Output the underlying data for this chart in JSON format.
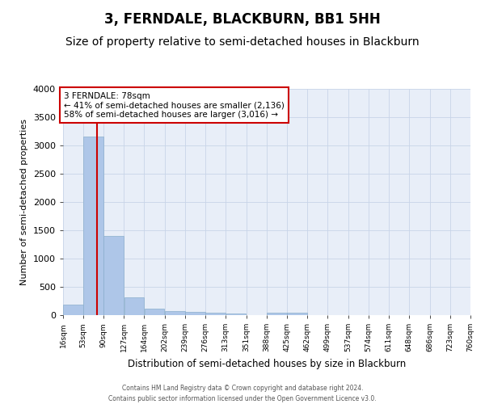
{
  "title": "3, FERNDALE, BLACKBURN, BB1 5HH",
  "subtitle": "Size of property relative to semi-detached houses in Blackburn",
  "xlabel": "Distribution of semi-detached houses by size in Blackburn",
  "ylabel": "Number of semi-detached properties",
  "bin_edges": [
    16,
    53,
    90,
    127,
    164,
    202,
    239,
    276,
    313,
    351,
    388,
    425,
    462,
    499,
    537,
    574,
    611,
    648,
    686,
    723,
    760
  ],
  "bar_heights": [
    180,
    3150,
    1400,
    310,
    120,
    70,
    60,
    45,
    35,
    0,
    45,
    45,
    0,
    0,
    0,
    0,
    0,
    0,
    0,
    0
  ],
  "bar_color": "#aec6e8",
  "grid_color": "#c8d4e8",
  "bg_color": "#e8eef8",
  "property_size": 78,
  "red_line_color": "#cc0000",
  "annotation_text": "3 FERNDALE: 78sqm\n← 41% of semi-detached houses are smaller (2,136)\n58% of semi-detached houses are larger (3,016) →",
  "annotation_box_color": "#ffffff",
  "annotation_box_edge": "#cc0000",
  "ylim": [
    0,
    4000
  ],
  "yticks": [
    0,
    500,
    1000,
    1500,
    2000,
    2500,
    3000,
    3500,
    4000
  ],
  "footer_line1": "Contains HM Land Registry data © Crown copyright and database right 2024.",
  "footer_line2": "Contains public sector information licensed under the Open Government Licence v3.0.",
  "title_fontsize": 12,
  "subtitle_fontsize": 10,
  "tick_labels": [
    "16sqm",
    "53sqm",
    "90sqm",
    "127sqm",
    "164sqm",
    "202sqm",
    "239sqm",
    "276sqm",
    "313sqm",
    "351sqm",
    "388sqm",
    "425sqm",
    "462sqm",
    "499sqm",
    "537sqm",
    "574sqm",
    "611sqm",
    "648sqm",
    "686sqm",
    "723sqm",
    "760sqm"
  ]
}
